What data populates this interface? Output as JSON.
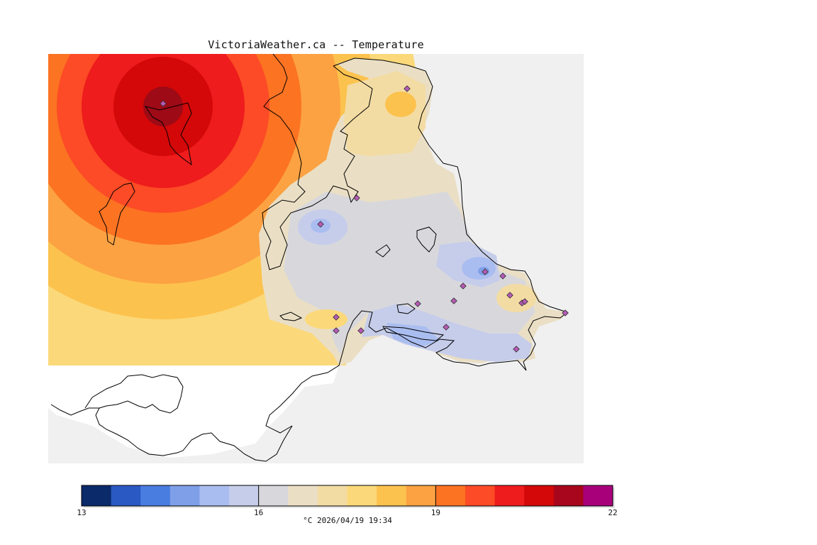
{
  "title": "VictoriaWeather.ca -- Temperature",
  "colorbar": {
    "min": 13,
    "max": 22,
    "step": 0.5,
    "colors": [
      "#0a2a6a",
      "#2b59c3",
      "#4a7de0",
      "#7f9fe8",
      "#aabdf0",
      "#c6cdea",
      "#d8d8dc",
      "#eadfc4",
      "#f3dca3",
      "#fbd97a",
      "#fcc24e",
      "#fca242",
      "#fc7322",
      "#fc4b26",
      "#ee1c1c",
      "#d40808",
      "#a8061c",
      "#a8007a"
    ],
    "ticks": [
      "13",
      "16",
      "19",
      "22"
    ]
  },
  "caption": "°C  2026/04/19 19:34",
  "map": {
    "hot_spot_color": "#9e0a16",
    "station_marker_color": "#b45ab4"
  }
}
